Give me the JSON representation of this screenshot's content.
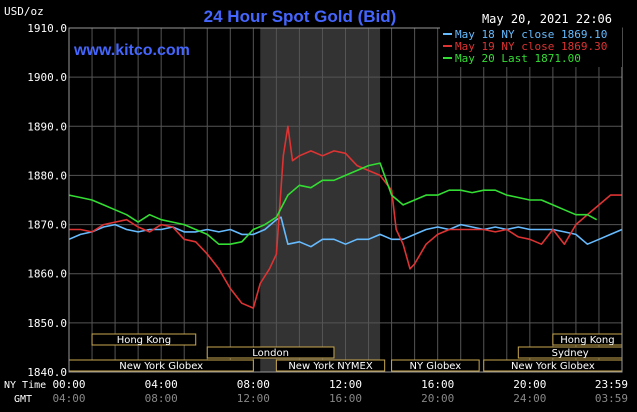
{
  "chart_data": {
    "type": "line",
    "title": "24 Hour Spot Gold (Bid)",
    "watermark": "www.kitco.com",
    "timestamp": "May 20, 2021 22:06",
    "ylabel": "USD/oz",
    "ylim": [
      1840,
      1910
    ],
    "yticks": [
      "1910.0",
      "1900.0",
      "1890.0",
      "1880.0",
      "1870.0",
      "1860.0",
      "1850.0",
      "1840.0"
    ],
    "ytick_values": [
      1910,
      1900,
      1890,
      1880,
      1870,
      1860,
      1850,
      1840
    ],
    "x_label_ny": "NY Time",
    "x_label_gmt": "GMT",
    "xticks_ny": [
      "00:00",
      "04:00",
      "08:00",
      "12:00",
      "16:00",
      "20:00",
      "23:59"
    ],
    "xticks_gmt": [
      "04:00",
      "08:00",
      "12:00",
      "16:00",
      "20:00",
      "24:00",
      "03:59"
    ],
    "xtick_hours": [
      0,
      4,
      8,
      12,
      16,
      20,
      23.98
    ],
    "xlim": [
      0,
      24
    ],
    "grid": true,
    "legend_position": "top-right",
    "highlight_hours": [
      8.3,
      13.5
    ],
    "sessions": [
      {
        "label": "Hong Kong",
        "start": 1.0,
        "end": 5.5,
        "row": 0
      },
      {
        "label": "London",
        "start": 6.0,
        "end": 11.5,
        "row": 1
      },
      {
        "label": "New York Globex",
        "start": 0.0,
        "end": 8.0,
        "row": 2
      },
      {
        "label": "New York NYMEX",
        "start": 9.0,
        "end": 13.7,
        "row": 2
      },
      {
        "label": "NY Globex",
        "start": 14.0,
        "end": 17.8,
        "row": 2
      },
      {
        "label": "Hong Kong",
        "start": 21.0,
        "end": 24.0,
        "row": 0
      },
      {
        "label": "Sydney",
        "start": 19.5,
        "end": 24.0,
        "row": 1
      },
      {
        "label": "New York Globex",
        "start": 18.0,
        "end": 24.0,
        "row": 2
      }
    ],
    "series": [
      {
        "name": "May 18 NY close 1869.10",
        "color": "#66bbff",
        "x": [
          0,
          0.5,
          1,
          1.5,
          2,
          2.5,
          3,
          3.5,
          4,
          4.5,
          5,
          5.5,
          6,
          6.5,
          7,
          7.5,
          8,
          8.5,
          9,
          9.2,
          9.5,
          10,
          10.5,
          11,
          11.5,
          12,
          12.5,
          13,
          13.5,
          14,
          14.5,
          15,
          15.5,
          16,
          16.5,
          17,
          17.5,
          18,
          18.5,
          19,
          19.5,
          20,
          20.5,
          21,
          21.5,
          22,
          22.5,
          23,
          23.5,
          24
        ],
        "values": [
          1867,
          1868,
          1868.5,
          1869.5,
          1870,
          1869,
          1868.5,
          1869,
          1869,
          1869.5,
          1868.5,
          1868.5,
          1869,
          1868.5,
          1869,
          1868,
          1868,
          1869,
          1871,
          1871.5,
          1866,
          1866.5,
          1865.5,
          1867,
          1867,
          1866,
          1867,
          1867,
          1868,
          1867,
          1867,
          1868,
          1869,
          1869.5,
          1869,
          1870,
          1869.5,
          1869,
          1869.5,
          1869,
          1869.5,
          1869,
          1869,
          1869,
          1868.5,
          1868,
          1866,
          1867,
          1868,
          1869
        ]
      },
      {
        "name": "May 19 NY close 1869.30",
        "color": "#dd3333",
        "x": [
          0,
          0.5,
          1,
          1.5,
          2,
          2.5,
          3,
          3.5,
          4,
          4.5,
          5,
          5.5,
          6,
          6.5,
          7,
          7.5,
          8,
          8.3,
          8.7,
          9,
          9.3,
          9.5,
          9.7,
          10,
          10.5,
          11,
          11.5,
          12,
          12.5,
          13,
          13.5,
          14,
          14.2,
          14.5,
          14.8,
          15,
          15.5,
          16,
          16.5,
          17,
          17.5,
          18,
          18.5,
          19,
          19.5,
          20,
          20.5,
          21,
          21.5,
          22,
          22.5,
          23,
          23.5,
          24
        ],
        "values": [
          1869,
          1869,
          1868.5,
          1870,
          1870.5,
          1871,
          1869.5,
          1868.5,
          1870,
          1869.5,
          1867,
          1866.5,
          1864,
          1861,
          1857,
          1854,
          1853,
          1858,
          1861,
          1864,
          1884,
          1890,
          1883,
          1884,
          1885,
          1884,
          1885,
          1884.5,
          1882,
          1881,
          1880,
          1877,
          1869,
          1866,
          1861,
          1862,
          1866,
          1868,
          1869,
          1869,
          1869,
          1869,
          1868.5,
          1869,
          1867.5,
          1867,
          1866,
          1869,
          1866,
          1870,
          1872,
          1874,
          1876,
          1876
        ]
      },
      {
        "name": "May 20 Last 1871.00",
        "color": "#33dd33",
        "x": [
          0,
          0.5,
          1,
          1.5,
          2,
          2.5,
          3,
          3.5,
          4,
          4.5,
          5,
          5.5,
          6,
          6.5,
          7,
          7.5,
          8,
          8.5,
          9,
          9.5,
          10,
          10.5,
          11,
          11.5,
          12,
          12.5,
          13,
          13.5,
          14,
          14.5,
          15,
          15.5,
          16,
          16.5,
          17,
          17.5,
          18,
          18.5,
          19,
          19.5,
          20,
          20.5,
          21,
          21.5,
          22,
          22.5,
          22.9
        ],
        "values": [
          1876,
          1875.5,
          1875,
          1874,
          1873,
          1872,
          1870.5,
          1872,
          1871,
          1870.5,
          1870,
          1869,
          1868,
          1866,
          1866,
          1866.5,
          1869,
          1870,
          1871.5,
          1876,
          1878,
          1877.5,
          1879,
          1879,
          1880,
          1881,
          1882,
          1882.5,
          1876,
          1874,
          1875,
          1876,
          1876,
          1877,
          1877,
          1876.5,
          1877,
          1877,
          1876,
          1875.5,
          1875,
          1875,
          1874,
          1873,
          1872,
          1872,
          1871
        ]
      }
    ]
  }
}
